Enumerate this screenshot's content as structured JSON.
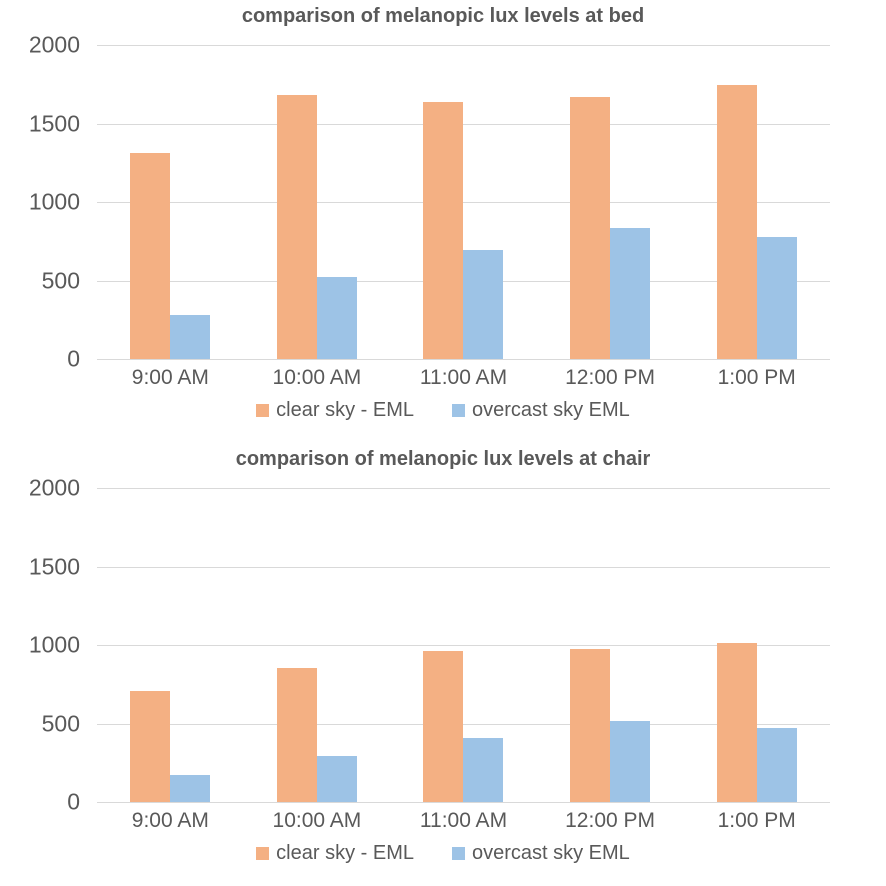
{
  "colors": {
    "clear": "#F4B083",
    "overcast": "#9DC3E6",
    "grid": "#D9D9D9",
    "text": "#595959",
    "background": "#FFFFFF"
  },
  "chart_data": [
    {
      "type": "bar",
      "title": "comparison of melanopic lux levels at bed",
      "categories": [
        "9:00 AM",
        "10:00 AM",
        "11:00 AM",
        "12:00 PM",
        "1:00 PM"
      ],
      "series": [
        {
          "name": "clear sky - EML",
          "color_key": "clear",
          "values": [
            1310,
            1680,
            1640,
            1670,
            1745
          ]
        },
        {
          "name": "overcast sky EML",
          "color_key": "overcast",
          "values": [
            280,
            520,
            695,
            835,
            780
          ]
        }
      ],
      "xlabel": "",
      "ylabel": "",
      "ylim": [
        0,
        2000
      ],
      "y_ticks": [
        0,
        500,
        1000,
        1500,
        2000
      ],
      "grid": "horizontal",
      "legend_position": "bottom"
    },
    {
      "type": "bar",
      "title": "comparison of melanopic lux levels at chair",
      "categories": [
        "9:00 AM",
        "10:00 AM",
        "11:00 AM",
        "12:00 PM",
        "1:00 PM"
      ],
      "series": [
        {
          "name": "clear sky - EML",
          "color_key": "clear",
          "values": [
            710,
            855,
            965,
            975,
            1010
          ]
        },
        {
          "name": "overcast sky EML",
          "color_key": "overcast",
          "values": [
            175,
            295,
            410,
            515,
            470
          ]
        }
      ],
      "xlabel": "",
      "ylabel": "",
      "ylim": [
        0,
        2000
      ],
      "y_ticks": [
        0,
        500,
        1000,
        1500,
        2000
      ],
      "grid": "horizontal",
      "legend_position": "bottom"
    }
  ]
}
